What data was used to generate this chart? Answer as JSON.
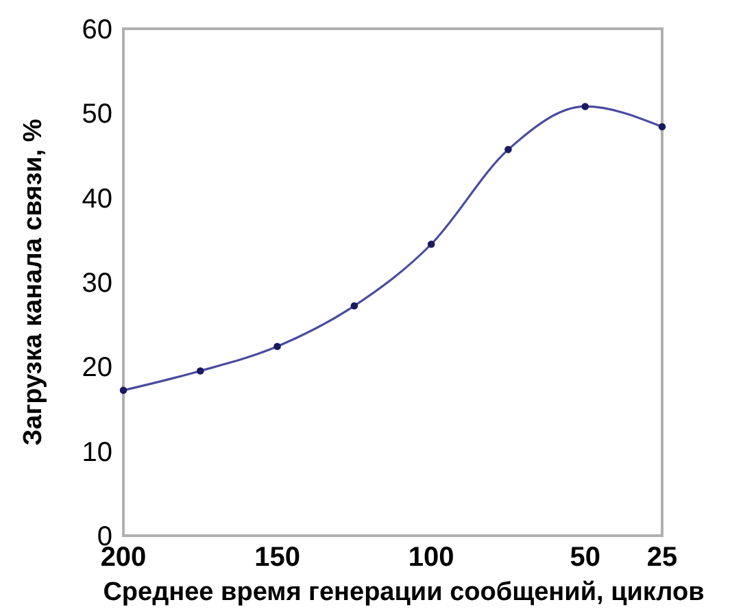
{
  "chart_data": {
    "type": "line",
    "xlabel": "Среднее время генерации сообщений, циклов",
    "ylabel": "Загрузка канала связи, %",
    "categories": [
      "200",
      null,
      "150",
      null,
      "100",
      null,
      "50",
      "25"
    ],
    "series": [
      {
        "color": "#4a4aa0",
        "values": [
          17.2,
          19.5,
          22.4,
          27.2,
          34.5,
          45.7,
          50.8,
          48.4
        ]
      }
    ],
    "ylim": [
      0,
      60
    ],
    "yticks": [
      0,
      10,
      20,
      30,
      40,
      50,
      60
    ],
    "marker": "circle",
    "line_style": "solid"
  }
}
